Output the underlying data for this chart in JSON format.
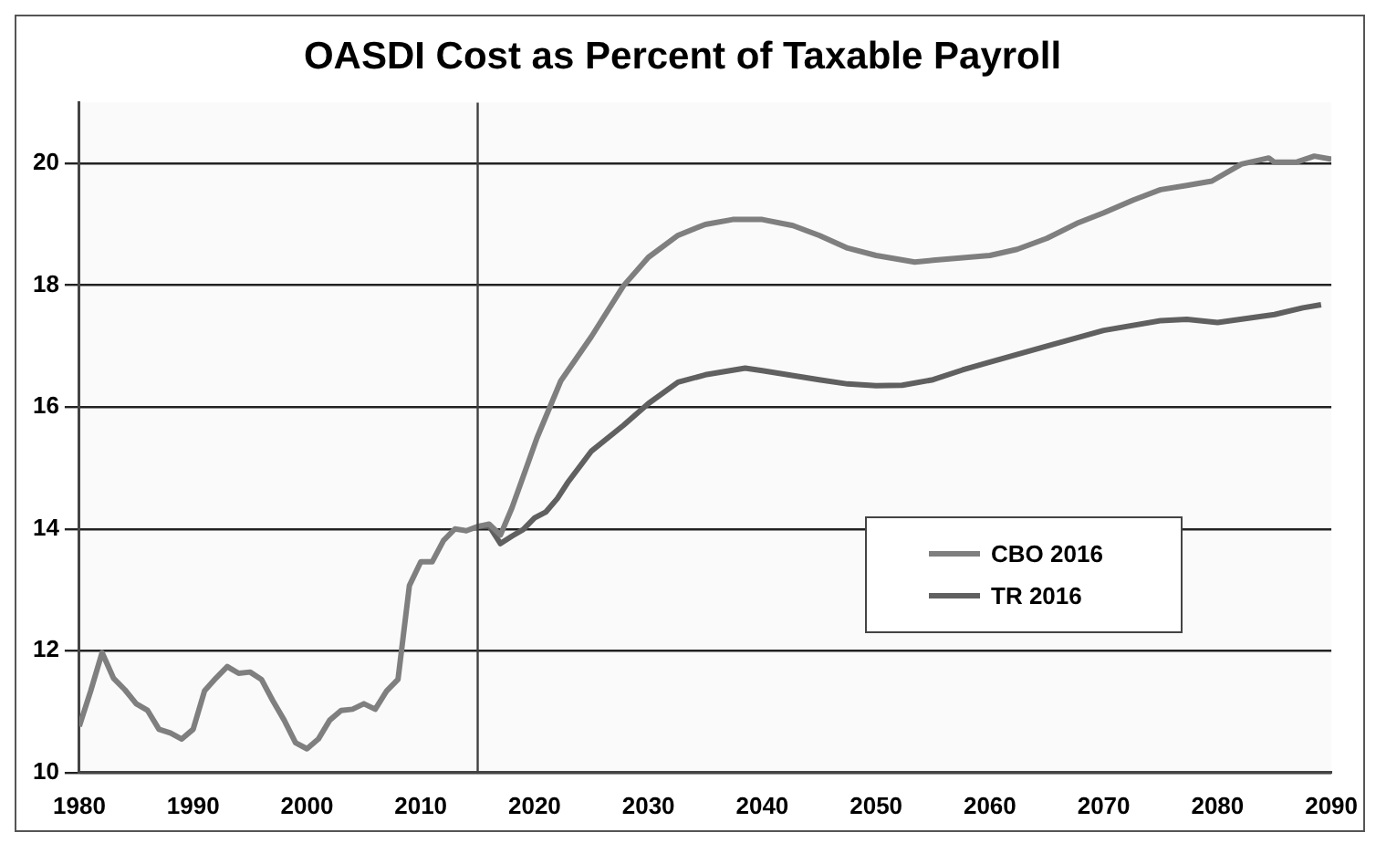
{
  "chart_data": {
    "type": "line",
    "title": "OASDI Cost as Percent of Taxable Payroll",
    "series": [
      {
        "name": "CBO 2016",
        "color": "#7f7f7f",
        "x": [
          1980,
          1981,
          1982,
          1983,
          1984,
          1985,
          1986,
          1987,
          1988,
          1989,
          1990,
          1991,
          1992,
          1993,
          1994,
          1995,
          1996,
          1997,
          1998,
          1999,
          2000,
          2001,
          2002,
          2003,
          2004,
          2005,
          2006,
          2007,
          2008,
          2009,
          2010,
          2011,
          2012,
          2013,
          2014,
          2015,
          2016,
          2017,
          2018,
          2019,
          2020.2,
          2022.3,
          2025,
          2027.8,
          2030,
          2032.6,
          2035,
          2037.4,
          2040,
          2042.7,
          2045,
          2047.5,
          2050,
          2053.4,
          2055,
          2060,
          2062.4,
          2065,
          2067.8,
          2070,
          2072.6,
          2075,
          2077.3,
          2079.5,
          2082.1,
          2084.5,
          2085,
          2086.9,
          2088.5,
          2090
        ],
        "values": [
          10.76,
          11.34,
          11.97,
          11.55,
          11.36,
          11.13,
          11.02,
          10.71,
          10.65,
          10.55,
          10.71,
          11.34,
          11.55,
          11.74,
          11.63,
          11.65,
          11.53,
          11.18,
          10.86,
          10.49,
          10.39,
          10.55,
          10.86,
          11.02,
          11.04,
          11.13,
          11.04,
          11.34,
          11.53,
          13.07,
          13.46,
          13.46,
          13.81,
          14.0,
          13.97,
          14.04,
          14.08,
          13.9,
          14.34,
          14.86,
          15.49,
          16.43,
          17.16,
          17.99,
          18.46,
          18.82,
          19.0,
          19.08,
          19.08,
          18.98,
          18.82,
          18.61,
          18.49,
          18.38,
          18.41,
          18.49,
          18.59,
          18.77,
          19.03,
          19.19,
          19.4,
          19.57,
          19.64,
          19.71,
          19.99,
          20.09,
          20.02,
          20.02,
          20.12,
          20.07
        ]
      },
      {
        "name": "TR 2016",
        "color": "#606060",
        "x": [
          2015,
          2016,
          2017,
          2018,
          2019,
          2020,
          2021,
          2022,
          2022.9,
          2025,
          2027.8,
          2030,
          2032.6,
          2035,
          2038.5,
          2040,
          2045,
          2047.5,
          2050,
          2052.3,
          2055,
          2057.6,
          2060,
          2065,
          2070,
          2075,
          2077.3,
          2080,
          2085,
          2087.5,
          2089.1
        ],
        "values": [
          14.04,
          14.05,
          13.76,
          13.88,
          13.99,
          14.18,
          14.28,
          14.5,
          14.76,
          15.28,
          15.7,
          16.06,
          16.41,
          16.53,
          16.64,
          16.6,
          16.45,
          16.38,
          16.35,
          16.36,
          16.45,
          16.61,
          16.74,
          17.0,
          17.26,
          17.42,
          17.44,
          17.39,
          17.52,
          17.63,
          17.68
        ]
      }
    ],
    "xlim": [
      1980,
      2090
    ],
    "xticks": [
      1980,
      1990,
      2000,
      2010,
      2020,
      2030,
      2040,
      2050,
      2060,
      2070,
      2080,
      2090
    ],
    "ylim": [
      10,
      21
    ],
    "yticks": [
      10,
      12,
      14,
      16,
      18,
      20
    ],
    "grid": "y",
    "legend": "bottom right",
    "marker": "none",
    "line_style": "solid",
    "ref_lines": [
      {
        "axis": "x",
        "value": 2015,
        "color": "#404040"
      }
    ]
  }
}
